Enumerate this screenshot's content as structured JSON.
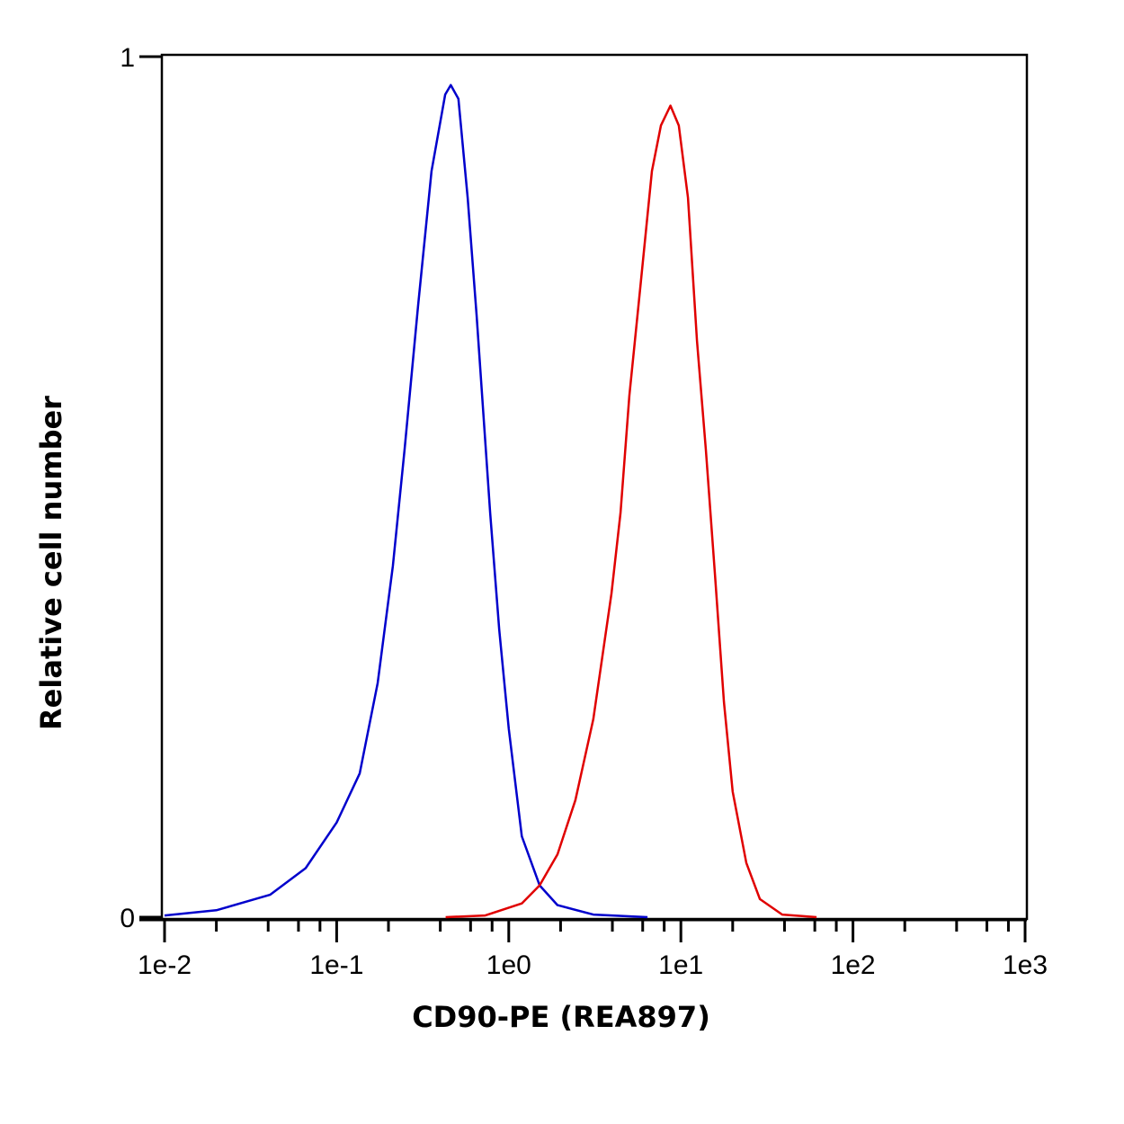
{
  "chart_data": {
    "type": "line",
    "title": "",
    "xlabel": "CD90-PE (REA897)",
    "ylabel": "Relative cell number",
    "x_scale": "log",
    "xlim": [
      0.01,
      1000
    ],
    "ylim": [
      0,
      1
    ],
    "x_ticks": [
      0.01,
      0.1,
      1,
      10,
      100,
      1000
    ],
    "x_tick_labels": [
      "1e-2",
      "1e-1",
      "1e0",
      "1e1",
      "1e2",
      "1e3"
    ],
    "y_ticks": [
      0,
      1
    ],
    "y_tick_labels": [
      "0",
      "1"
    ],
    "grid": false,
    "legend": "none",
    "series": [
      {
        "color": "#0000cc",
        "x": [
          0.01,
          0.02,
          0.041,
          0.066,
          0.1,
          0.136,
          0.173,
          0.212,
          0.248,
          0.297,
          0.356,
          0.427,
          0.46,
          0.51,
          0.577,
          0.65,
          0.78,
          0.88,
          1.0,
          1.19,
          1.51,
          1.92,
          3.1,
          6.4
        ],
        "y": [
          0.002,
          0.008,
          0.026,
          0.057,
          0.11,
          0.167,
          0.272,
          0.408,
          0.543,
          0.71,
          0.867,
          0.956,
          0.967,
          0.951,
          0.836,
          0.7,
          0.47,
          0.334,
          0.219,
          0.094,
          0.037,
          0.014,
          0.003,
          0.0
        ]
      },
      {
        "color": "#e00000",
        "x": [
          0.43,
          0.73,
          1.19,
          1.51,
          1.92,
          2.44,
          3.1,
          3.95,
          4.46,
          5.02,
          5.8,
          6.79,
          7.66,
          8.7,
          9.73,
          11.0,
          12.4,
          13.97,
          15.8,
          17.8,
          20.0,
          24.0,
          28.8,
          38.8,
          61.4
        ],
        "y": [
          0.0,
          0.002,
          0.016,
          0.037,
          0.073,
          0.136,
          0.23,
          0.376,
          0.47,
          0.606,
          0.73,
          0.867,
          0.92,
          0.943,
          0.92,
          0.836,
          0.67,
          0.543,
          0.397,
          0.25,
          0.146,
          0.063,
          0.021,
          0.003,
          0.0
        ]
      }
    ]
  }
}
